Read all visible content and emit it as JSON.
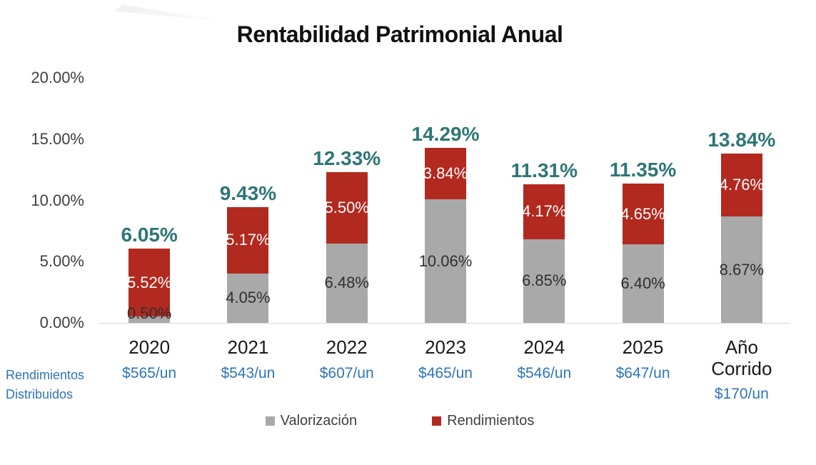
{
  "title": "Rentabilidad Patrimonial Anual",
  "chart_data": {
    "type": "bar",
    "stacked": true,
    "title": "Rentabilidad Patrimonial Anual",
    "categories": [
      "2020",
      "2021",
      "2022",
      "2023",
      "2024",
      "2025",
      "Año Corrido"
    ],
    "series": [
      {
        "name": "Valorización",
        "color": "#A9A9A9",
        "values": [
          0.5,
          4.05,
          6.48,
          10.06,
          6.85,
          6.4,
          8.67
        ],
        "labels": [
          "0.50%",
          "4.05%",
          "6.48%",
          "10.06%",
          "6.85%",
          "6.40%",
          "8.67%"
        ],
        "label_color": "#2f2f2f"
      },
      {
        "name": "Rendimientos",
        "color": "#B2291F",
        "values": [
          5.52,
          5.17,
          5.5,
          3.84,
          4.17,
          4.65,
          4.76
        ],
        "labels": [
          "5.52%",
          "5.17%",
          "5.50%",
          "3.84%",
          "4.17%",
          "4.65%",
          "4.76%"
        ],
        "label_color": "#FFFFFF"
      }
    ],
    "totals": {
      "values": [
        6.05,
        9.43,
        12.33,
        14.29,
        11.31,
        11.35,
        13.84
      ],
      "labels": [
        "6.05%",
        "9.43%",
        "12.33%",
        "14.29%",
        "11.31%",
        "11.35%",
        "13.84%"
      ],
      "color": "#2E7677"
    },
    "y_axis": {
      "tick_labels": [
        "20.00%",
        "15.00%",
        "10.00%",
        "5.00%",
        "0.00%"
      ],
      "min": 0,
      "max": 20,
      "grid": false
    },
    "legend": {
      "position": "bottom",
      "items": [
        {
          "label": "Valorización",
          "color": "#A9A9A9"
        },
        {
          "label": "Rendimientos",
          "color": "#B2291F"
        }
      ]
    },
    "distributions_row": {
      "label": "Rendimientos Distribuidos",
      "color": "#2E75B6",
      "values": [
        "$565/un",
        "$543/un",
        "$607/un",
        "$465/un",
        "$546/un",
        "$647/un",
        "$170/un"
      ]
    }
  }
}
